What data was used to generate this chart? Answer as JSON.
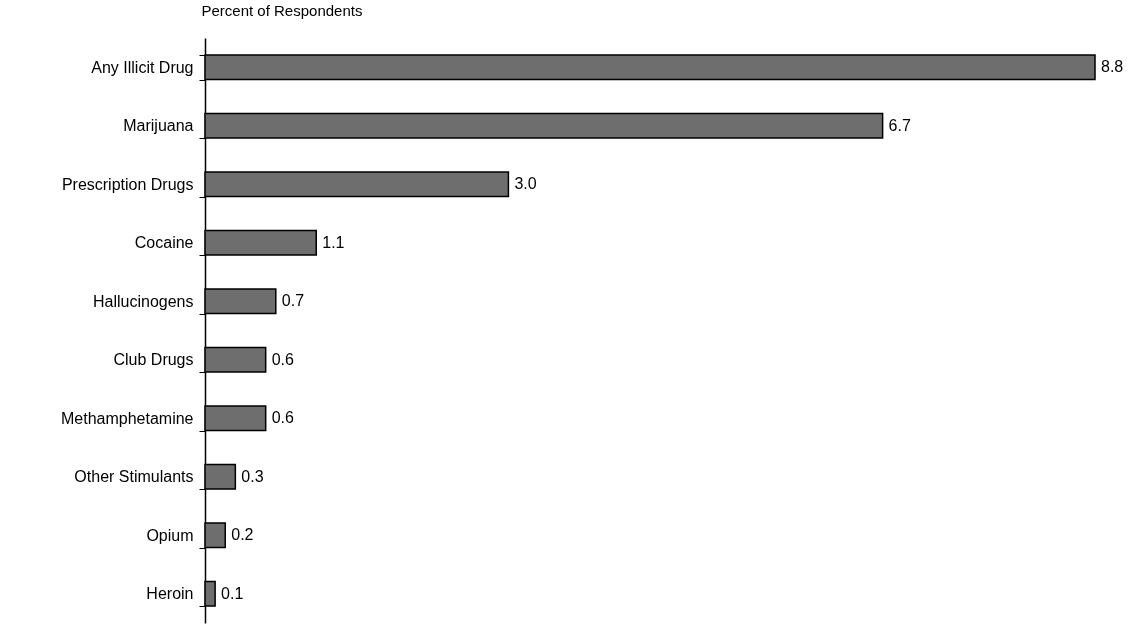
{
  "chart_data": {
    "type": "bar",
    "orientation": "horizontal",
    "xlabel": "Percent of Respondents",
    "categories": [
      "Any Illicit Drug",
      "Marijuana",
      "Prescription Drugs",
      "Cocaine",
      "Hallucinogens",
      "Club Drugs",
      "Methamphetamine",
      "Other Stimulants",
      "Opium",
      "Heroin"
    ],
    "values": [
      8.8,
      6.7,
      3.0,
      1.1,
      0.7,
      0.6,
      0.6,
      0.3,
      0.2,
      0.1
    ],
    "value_labels": [
      "8.8",
      "6.7",
      "3.0",
      "1.1",
      "0.7",
      "0.6",
      "0.6",
      "0.3",
      "0.2",
      "0.1"
    ],
    "color": "#6e6e6e",
    "xlim": [
      0,
      8.8
    ]
  }
}
